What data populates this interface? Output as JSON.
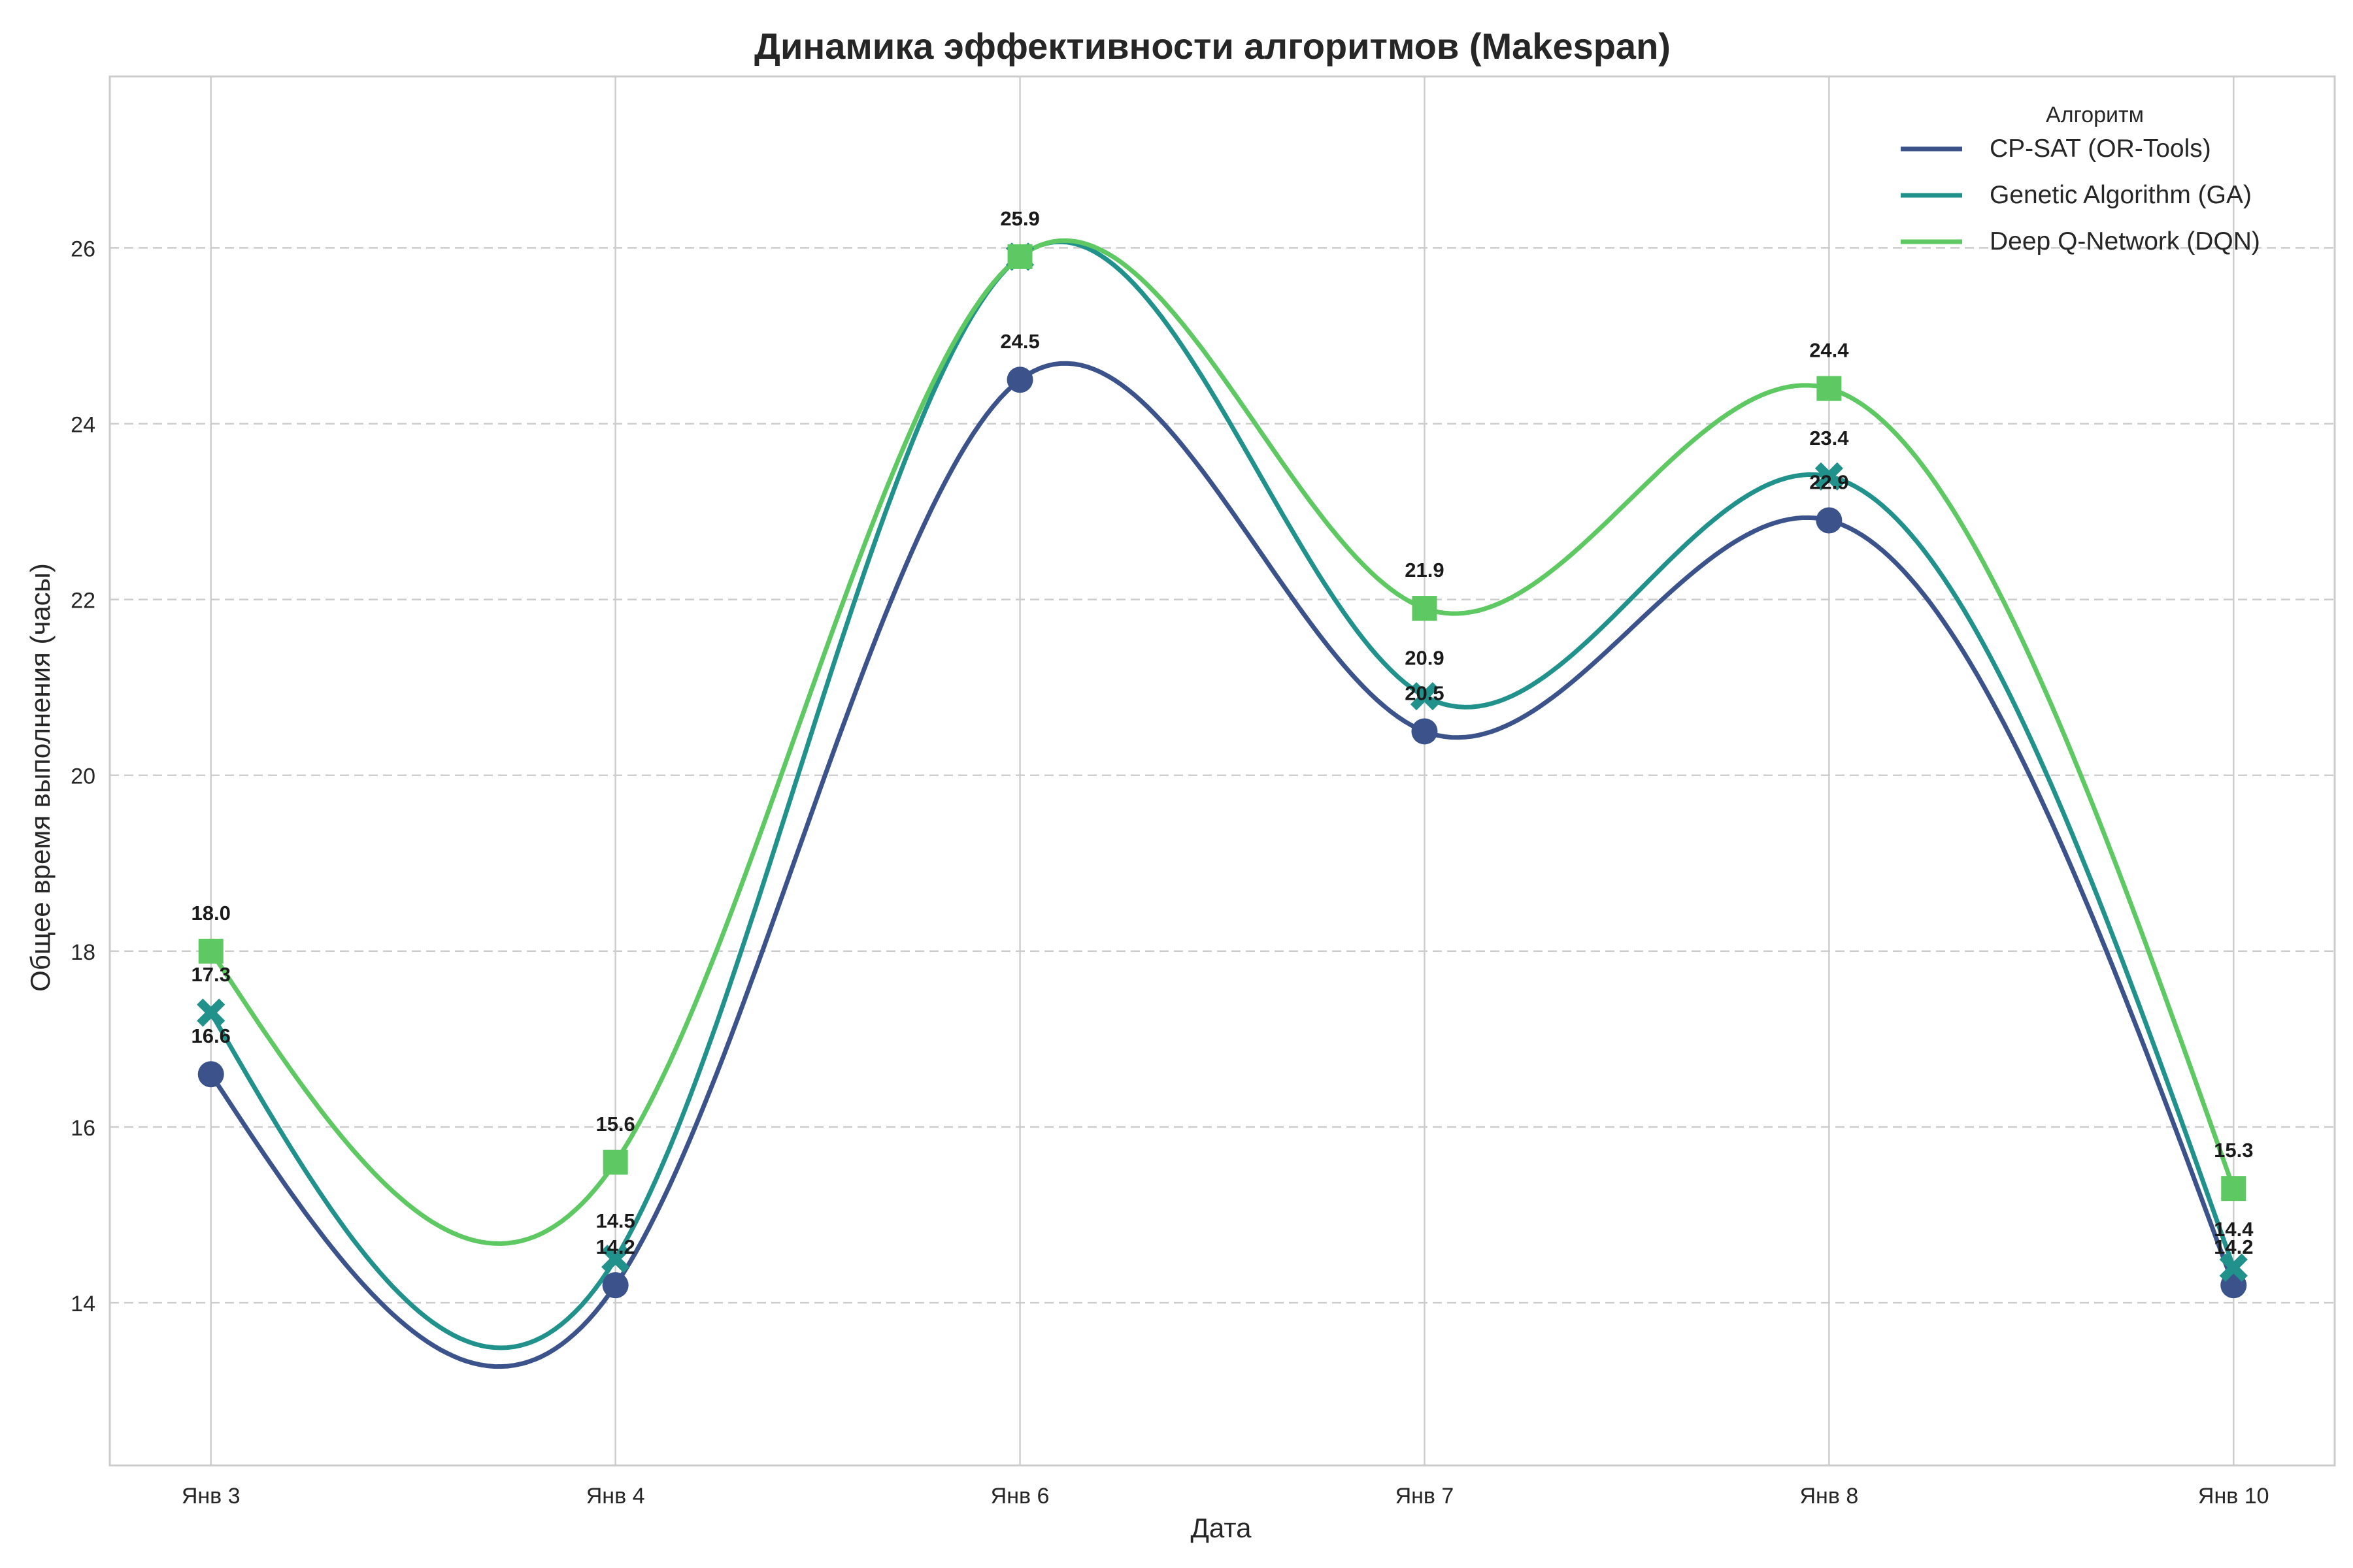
{
  "chart_data": {
    "type": "line",
    "title": "Динамика эффективности алгоритмов (Makespan)",
    "xlabel": "Дата",
    "ylabel": "Общее время выполнения (часы)",
    "categories": [
      "Янв 3",
      "Янв 4",
      "Янв 6",
      "Янв 7",
      "Янв 8",
      "Янв 10"
    ],
    "ylim": [
      12.15,
      27.95
    ],
    "yticks": [
      14,
      16,
      18,
      20,
      22,
      24,
      26
    ],
    "grid": true,
    "smooth": true,
    "legend": {
      "title": "Алгоритм",
      "placement": "top-right"
    },
    "series": [
      {
        "name": "CP-SAT (OR-Tools)",
        "color": "#3b528b",
        "marker": "circle",
        "values": [
          16.6,
          14.2,
          24.5,
          20.5,
          22.9,
          14.2
        ]
      },
      {
        "name": "Genetic Algorithm (GA)",
        "color": "#21918c",
        "marker": "x",
        "values": [
          17.3,
          14.5,
          25.9,
          20.9,
          23.4,
          14.4
        ]
      },
      {
        "name": "Deep Q-Network (DQN)",
        "color": "#5ec962",
        "marker": "square",
        "values": [
          18.0,
          15.6,
          25.9,
          21.9,
          24.4,
          15.3
        ]
      }
    ]
  }
}
